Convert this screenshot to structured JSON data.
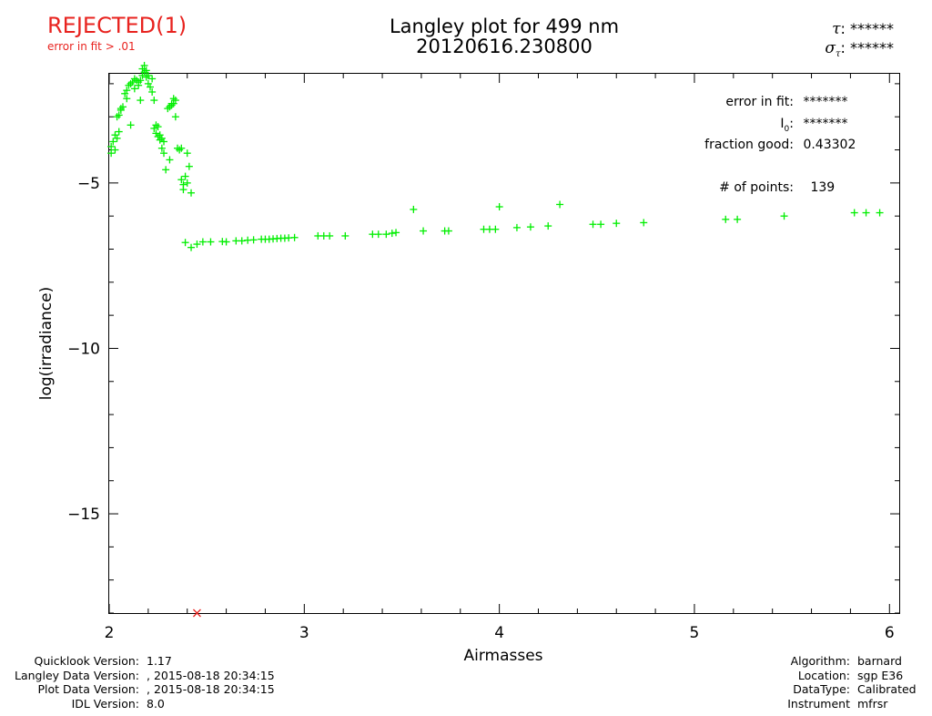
{
  "status": {
    "label": "REJECTED(1)",
    "reason": "error in fit > .01",
    "color": "#e8231f"
  },
  "title": {
    "line1": "Langley plot for 499 nm",
    "line2": "20120616.230800"
  },
  "tau": {
    "tau_symbol": "τ",
    "tau_value": "******",
    "sigma_symbol": "σ",
    "sigma_sub": "τ",
    "sigma_value": "******"
  },
  "fit_info": {
    "error_label": "error in fit:",
    "error_value": "*******",
    "i0_label": "I",
    "i0_sub": "0",
    "i0_value": "*******",
    "fraction_label": "fraction good:",
    "fraction_value": "0.43302",
    "points_label": "# of points:",
    "points_value": "139"
  },
  "footer_left": [
    {
      "key": "Quicklook Version:",
      "value": "1.17"
    },
    {
      "key": "Langley Data Version:",
      "value": ", 2015-08-18 20:34:15"
    },
    {
      "key": "Plot Data Version:",
      "value": ", 2015-08-18 20:34:15"
    },
    {
      "key": "IDL Version:",
      "value": "8.0"
    }
  ],
  "footer_right": [
    {
      "key": "Algorithm:",
      "value": "barnard"
    },
    {
      "key": "Location:",
      "value": "sgp E36"
    },
    {
      "key": "DataType:",
      "value": "Calibrated"
    },
    {
      "key": "Instrument",
      "value": "mfrsr"
    }
  ],
  "chart_data": {
    "type": "scatter",
    "title": "Langley plot for 499 nm",
    "xlabel": "Airmasses",
    "ylabel": "log(irradiance)",
    "xlim": [
      2.0,
      6.05
    ],
    "ylim": [
      -18.0,
      -1.7
    ],
    "x_ticks": [
      2,
      3,
      4,
      5,
      6
    ],
    "x_tick_labels": [
      "2",
      "3",
      "4",
      "5",
      "6"
    ],
    "y_ticks": [
      -5,
      -10,
      -15
    ],
    "y_tick_labels": [
      "−5",
      "−10",
      "−15"
    ],
    "marker": "+",
    "point_color": "#00ee00",
    "rejected_color": "#e8231f",
    "series": [
      {
        "values": [
          [
            2.01,
            -3.9
          ],
          [
            2.01,
            -4.1
          ],
          [
            2.02,
            -3.75
          ],
          [
            2.03,
            -3.55
          ],
          [
            2.03,
            -4.0
          ],
          [
            2.04,
            -3.0
          ],
          [
            2.04,
            -3.65
          ],
          [
            2.05,
            -2.95
          ],
          [
            2.05,
            -3.45
          ],
          [
            2.06,
            -2.75
          ],
          [
            2.06,
            -2.8
          ],
          [
            2.07,
            -2.7
          ],
          [
            2.08,
            -2.3
          ],
          [
            2.09,
            -2.45
          ],
          [
            2.09,
            -2.2
          ],
          [
            2.1,
            -2.05
          ],
          [
            2.11,
            -2.0
          ],
          [
            2.11,
            -3.25
          ],
          [
            2.12,
            -1.95
          ],
          [
            2.13,
            -1.85
          ],
          [
            2.13,
            -2.15
          ],
          [
            2.14,
            -1.9
          ],
          [
            2.15,
            -1.95
          ],
          [
            2.15,
            -2.05
          ],
          [
            2.16,
            -2.5
          ],
          [
            2.16,
            -1.9
          ],
          [
            2.17,
            -1.75
          ],
          [
            2.17,
            -1.55
          ],
          [
            2.18,
            -1.65
          ],
          [
            2.18,
            -1.45
          ],
          [
            2.19,
            -1.6
          ],
          [
            2.19,
            -1.8
          ],
          [
            2.2,
            -1.75
          ],
          [
            2.2,
            -2.0
          ],
          [
            2.21,
            -2.1
          ],
          [
            2.22,
            -1.85
          ],
          [
            2.22,
            -2.25
          ],
          [
            2.23,
            -2.5
          ],
          [
            2.23,
            -3.35
          ],
          [
            2.24,
            -3.25
          ],
          [
            2.24,
            -3.5
          ],
          [
            2.25,
            -3.3
          ],
          [
            2.25,
            -3.6
          ],
          [
            2.26,
            -3.55
          ],
          [
            2.26,
            -3.7
          ],
          [
            2.27,
            -3.65
          ],
          [
            2.27,
            -3.95
          ],
          [
            2.28,
            -4.1
          ],
          [
            2.28,
            -3.75
          ],
          [
            2.29,
            -4.6
          ],
          [
            2.3,
            -2.75
          ],
          [
            2.31,
            -2.7
          ],
          [
            2.31,
            -4.3
          ],
          [
            2.32,
            -2.65
          ],
          [
            2.32,
            -2.6
          ],
          [
            2.33,
            -2.6
          ],
          [
            2.33,
            -2.45
          ],
          [
            2.34,
            -2.5
          ],
          [
            2.34,
            -3.0
          ],
          [
            2.35,
            -3.95
          ],
          [
            2.36,
            -4.0
          ],
          [
            2.37,
            -3.95
          ],
          [
            2.37,
            -4.9
          ],
          [
            2.38,
            -5.05
          ],
          [
            2.38,
            -5.2
          ],
          [
            2.39,
            -4.8
          ],
          [
            2.4,
            -5.0
          ],
          [
            2.4,
            -4.1
          ],
          [
            2.41,
            -4.5
          ],
          [
            2.42,
            -5.3
          ],
          [
            2.39,
            -6.8
          ],
          [
            2.42,
            -6.95
          ],
          [
            2.45,
            -6.85
          ],
          [
            2.48,
            -6.78
          ],
          [
            2.52,
            -6.78
          ],
          [
            2.58,
            -6.77
          ],
          [
            2.6,
            -6.78
          ],
          [
            2.65,
            -6.75
          ],
          [
            2.68,
            -6.75
          ],
          [
            2.71,
            -6.73
          ],
          [
            2.74,
            -6.72
          ],
          [
            2.78,
            -6.7
          ],
          [
            2.8,
            -6.7
          ],
          [
            2.82,
            -6.7
          ],
          [
            2.84,
            -6.69
          ],
          [
            2.86,
            -6.68
          ],
          [
            2.88,
            -6.67
          ],
          [
            2.9,
            -6.67
          ],
          [
            2.92,
            -6.66
          ],
          [
            2.95,
            -6.65
          ],
          [
            3.07,
            -6.6
          ],
          [
            3.1,
            -6.6
          ],
          [
            3.13,
            -6.6
          ],
          [
            3.21,
            -6.6
          ],
          [
            3.35,
            -6.55
          ],
          [
            3.38,
            -6.55
          ],
          [
            3.42,
            -6.55
          ],
          [
            3.45,
            -6.52
          ],
          [
            3.47,
            -6.5
          ],
          [
            3.56,
            -5.8
          ],
          [
            3.61,
            -6.45
          ],
          [
            3.72,
            -6.45
          ],
          [
            3.74,
            -6.45
          ],
          [
            3.92,
            -6.4
          ],
          [
            3.95,
            -6.4
          ],
          [
            3.98,
            -6.4
          ],
          [
            4.0,
            -5.72
          ],
          [
            4.09,
            -6.35
          ],
          [
            4.16,
            -6.33
          ],
          [
            4.25,
            -6.3
          ],
          [
            4.31,
            -5.65
          ],
          [
            4.48,
            -6.25
          ],
          [
            4.52,
            -6.25
          ],
          [
            4.6,
            -6.22
          ],
          [
            4.74,
            -6.2
          ],
          [
            5.16,
            -6.1
          ],
          [
            5.22,
            -6.1
          ],
          [
            5.46,
            -6.0
          ],
          [
            5.82,
            -5.9
          ],
          [
            5.88,
            -5.9
          ],
          [
            5.95,
            -5.9
          ]
        ]
      }
    ],
    "rejected_points": [
      [
        2.45,
        -18.05
      ]
    ]
  }
}
